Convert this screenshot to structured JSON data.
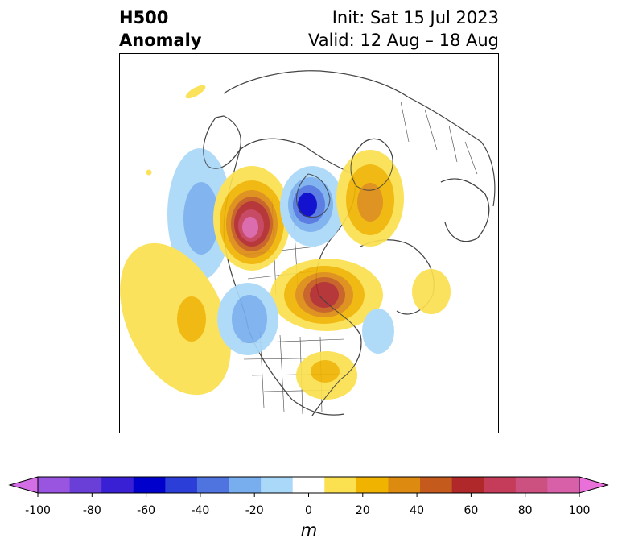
{
  "title": {
    "line1": "H500",
    "line2": "Anomaly",
    "init": "Init: Sat 15 Jul 2023",
    "valid": "Valid: 12 Aug – 18 Aug"
  },
  "colorbar": {
    "unit": "m",
    "ticks": [
      "-100",
      "-80",
      "-60",
      "-40",
      "-20",
      "0",
      "20",
      "40",
      "60",
      "80",
      "100"
    ],
    "colors": [
      "#d46ee6",
      "#9a55e0",
      "#6a3fd8",
      "#3a20d4",
      "#0000cc",
      "#2b3ed8",
      "#4f74e0",
      "#78aeee",
      "#aad8f8",
      "#ffffff",
      "#fbe050",
      "#f0b400",
      "#dc8a10",
      "#c45a1c",
      "#b0282a",
      "#c43c5a",
      "#cc5080",
      "#d860a8",
      "#e870d8"
    ]
  },
  "map": {
    "border_color": "#444444",
    "anomaly_colors": {
      "pos_light": "#fbe050",
      "pos_mid": "#f0b400",
      "pos_dark": "#dc8a10",
      "pos_red": "#b0282a",
      "pos_pink": "#d860a8",
      "neg_light": "#aad8f8",
      "neg_mid": "#78aeee",
      "neg_dark": "#4f74e0",
      "neg_blue": "#0000cc"
    }
  }
}
